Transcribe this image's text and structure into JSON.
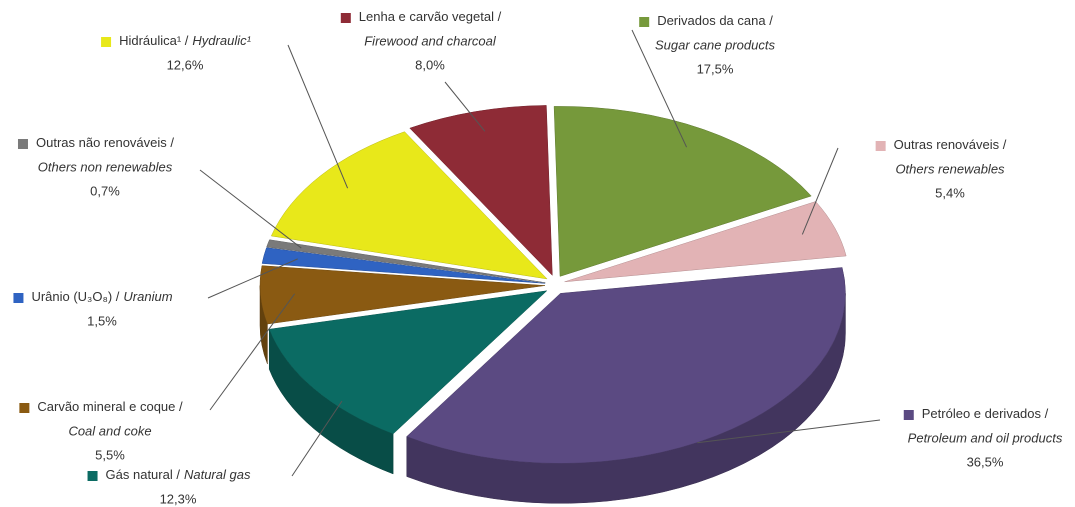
{
  "chart_data": {
    "type": "pie",
    "categories": [
      "Lenha e carvão vegetal /",
      "Derivados da cana /",
      "Outras renováveis /",
      "Petróleo e derivados /",
      "Gás natural /",
      "Carvão mineral e coque /",
      "Urânio (U₃O₈) /",
      "Outras não renováveis /",
      "Hidráulica¹ /"
    ],
    "categories_en": [
      "Firewood and charcoal",
      "Sugar cane products",
      "Others renewables",
      "Petroleum and oil products",
      "Natural gas",
      "Coal and coke",
      "Uranium",
      "Others non renewables",
      "Hydraulic¹"
    ],
    "values": [
      8.0,
      17.5,
      5.4,
      36.5,
      12.3,
      5.5,
      1.5,
      0.7,
      12.6
    ],
    "value_labels": [
      "8,0%",
      "17,5%",
      "5,4%",
      "36,5%",
      "12,3%",
      "5,5%",
      "1,5%",
      "0,7%",
      "12,6%"
    ],
    "colors": [
      "#8e2b36",
      "#76993b",
      "#e2b3b5",
      "#5b4a82",
      "#0b6b63",
      "#8a5a12",
      "#2f63c2",
      "#7a7a7a",
      "#e8e81a"
    ]
  }
}
